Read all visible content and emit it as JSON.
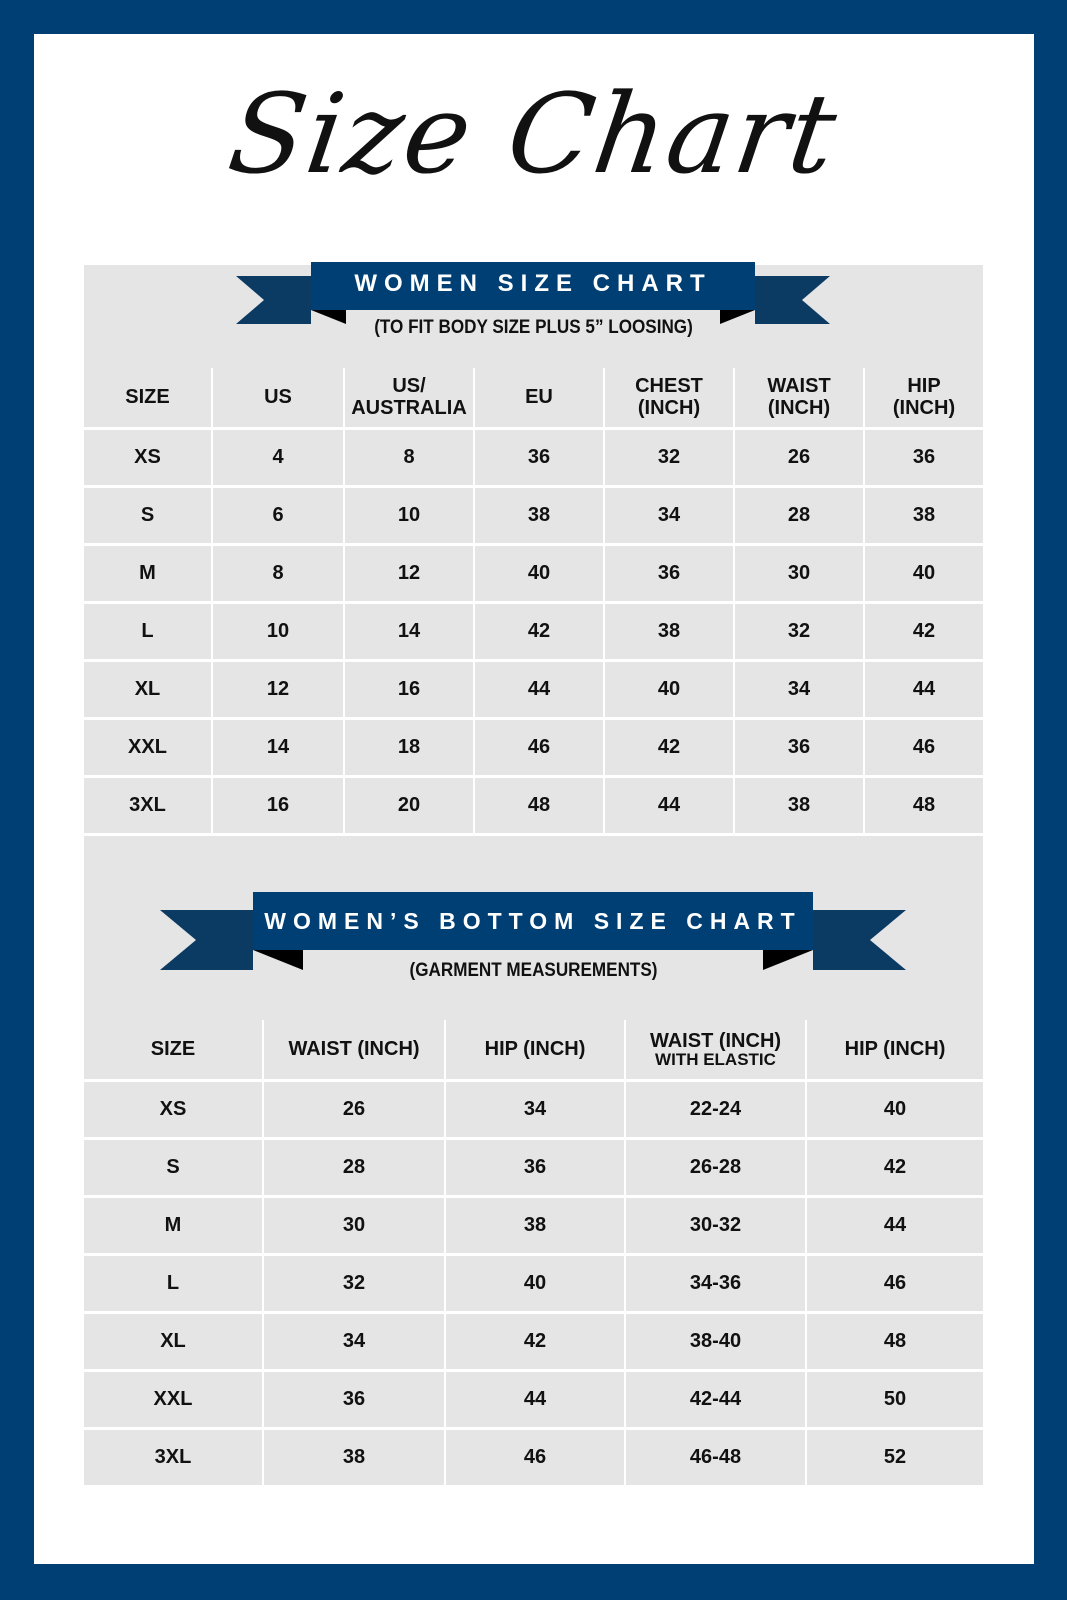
{
  "title": "Size Chart",
  "colors": {
    "border": "#003f73",
    "ribbon": "#003f73",
    "ribbon_tail": "#0b3a63",
    "panel": "#e5e5e5"
  },
  "top_chart": {
    "heading": "WOMEN SIZE CHART",
    "subtitle": "(TO FIT BODY SIZE PLUS 5” LOOSING)",
    "headers": [
      [
        "SIZE"
      ],
      [
        "US"
      ],
      [
        "US/",
        "AUSTRALIA"
      ],
      [
        "EU"
      ],
      [
        "CHEST",
        "(INCH)"
      ],
      [
        "WAIST",
        "(INCH)"
      ],
      [
        "HIP",
        "(INCH)"
      ]
    ],
    "rows": [
      [
        "XS",
        "4",
        "8",
        "36",
        "32",
        "26",
        "36"
      ],
      [
        "S",
        "6",
        "10",
        "38",
        "34",
        "28",
        "38"
      ],
      [
        "M",
        "8",
        "12",
        "40",
        "36",
        "30",
        "40"
      ],
      [
        "L",
        "10",
        "14",
        "42",
        "38",
        "32",
        "42"
      ],
      [
        "XL",
        "12",
        "16",
        "44",
        "40",
        "34",
        "44"
      ],
      [
        "XXL",
        "14",
        "18",
        "46",
        "42",
        "36",
        "46"
      ],
      [
        "3XL",
        "16",
        "20",
        "48",
        "44",
        "38",
        "48"
      ]
    ]
  },
  "bottom_chart": {
    "heading": "WOMEN’S BOTTOM SIZE CHART",
    "subtitle": "(GARMENT MEASUREMENTS)",
    "headers": [
      [
        "SIZE"
      ],
      [
        "WAIST (INCH)"
      ],
      [
        "HIP (INCH)"
      ],
      [
        "WAIST (INCH)",
        "WITH ELASTIC"
      ],
      [
        "HIP (INCH)"
      ]
    ],
    "rows": [
      [
        "XS",
        "26",
        "34",
        "22-24",
        "40"
      ],
      [
        "S",
        "28",
        "36",
        "26-28",
        "42"
      ],
      [
        "M",
        "30",
        "38",
        "30-32",
        "44"
      ],
      [
        "L",
        "32",
        "40",
        "34-36",
        "46"
      ],
      [
        "XL",
        "34",
        "42",
        "38-40",
        "48"
      ],
      [
        "XXL",
        "36",
        "44",
        "42-44",
        "50"
      ],
      [
        "3XL",
        "38",
        "46",
        "46-48",
        "52"
      ]
    ]
  }
}
